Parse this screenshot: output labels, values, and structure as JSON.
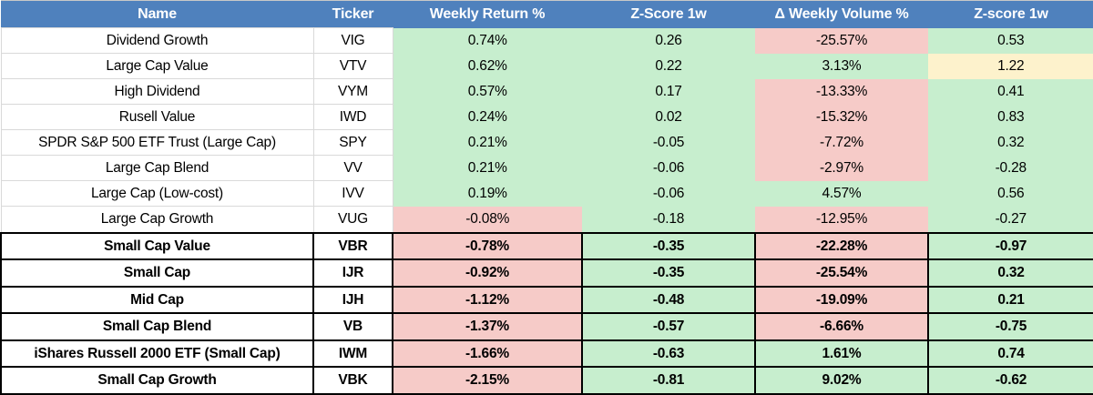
{
  "colors": {
    "header_bg": "#4F81BD",
    "header_text": "#FFFFFF",
    "green": "#C7EECE",
    "red": "#F6CBC8",
    "yellow": "#FDF2CC",
    "white": "#FFFFFF",
    "grid_light": "#D9D9D9",
    "grid_heavy": "#000000"
  },
  "table": {
    "columns": [
      {
        "label": "Name"
      },
      {
        "label": "Ticker"
      },
      {
        "label": "Weekly Return %"
      },
      {
        "label": "Z-Score 1w"
      },
      {
        "label": "Δ Weekly Volume %"
      },
      {
        "label": "Z-score 1w"
      }
    ],
    "rows": [
      {
        "name": "Dividend Growth",
        "ticker": "VIG",
        "bold": false,
        "cells": [
          {
            "value": "0.74%",
            "bg": "green"
          },
          {
            "value": "0.26",
            "bg": "green"
          },
          {
            "value": "-25.57%",
            "bg": "red"
          },
          {
            "value": "0.53",
            "bg": "green"
          }
        ]
      },
      {
        "name": "Large Cap Value",
        "ticker": "VTV",
        "bold": false,
        "cells": [
          {
            "value": "0.62%",
            "bg": "green"
          },
          {
            "value": "0.22",
            "bg": "green"
          },
          {
            "value": "3.13%",
            "bg": "green"
          },
          {
            "value": "1.22",
            "bg": "yellow"
          }
        ]
      },
      {
        "name": "High Dividend",
        "ticker": "VYM",
        "bold": false,
        "cells": [
          {
            "value": "0.57%",
            "bg": "green"
          },
          {
            "value": "0.17",
            "bg": "green"
          },
          {
            "value": "-13.33%",
            "bg": "red"
          },
          {
            "value": "0.41",
            "bg": "green"
          }
        ]
      },
      {
        "name": "Rusell Value",
        "ticker": "IWD",
        "bold": false,
        "cells": [
          {
            "value": "0.24%",
            "bg": "green"
          },
          {
            "value": "0.02",
            "bg": "green"
          },
          {
            "value": "-15.32%",
            "bg": "red"
          },
          {
            "value": "0.83",
            "bg": "green"
          }
        ]
      },
      {
        "name": "SPDR S&P 500 ETF Trust (Large Cap)",
        "ticker": "SPY",
        "bold": false,
        "cells": [
          {
            "value": "0.21%",
            "bg": "green"
          },
          {
            "value": "-0.05",
            "bg": "green"
          },
          {
            "value": "-7.72%",
            "bg": "red"
          },
          {
            "value": "0.32",
            "bg": "green"
          }
        ]
      },
      {
        "name": "Large Cap Blend",
        "ticker": "VV",
        "bold": false,
        "cells": [
          {
            "value": "0.21%",
            "bg": "green"
          },
          {
            "value": "-0.06",
            "bg": "green"
          },
          {
            "value": "-2.97%",
            "bg": "red"
          },
          {
            "value": "-0.28",
            "bg": "green"
          }
        ]
      },
      {
        "name": "Large Cap (Low-cost)",
        "ticker": "IVV",
        "bold": false,
        "cells": [
          {
            "value": "0.19%",
            "bg": "green"
          },
          {
            "value": "-0.06",
            "bg": "green"
          },
          {
            "value": "4.57%",
            "bg": "green"
          },
          {
            "value": "0.56",
            "bg": "green"
          }
        ]
      },
      {
        "name": "Large Cap Growth",
        "ticker": "VUG",
        "bold": false,
        "cells": [
          {
            "value": "-0.08%",
            "bg": "red"
          },
          {
            "value": "-0.18",
            "bg": "green"
          },
          {
            "value": "-12.95%",
            "bg": "red"
          },
          {
            "value": "-0.27",
            "bg": "green"
          }
        ]
      },
      {
        "name": "Small Cap Value",
        "ticker": "VBR",
        "bold": true,
        "cells": [
          {
            "value": "-0.78%",
            "bg": "red"
          },
          {
            "value": "-0.35",
            "bg": "green"
          },
          {
            "value": "-22.28%",
            "bg": "red"
          },
          {
            "value": "-0.97",
            "bg": "green"
          }
        ]
      },
      {
        "name": "Small Cap",
        "ticker": "IJR",
        "bold": true,
        "cells": [
          {
            "value": "-0.92%",
            "bg": "red"
          },
          {
            "value": "-0.35",
            "bg": "green"
          },
          {
            "value": "-25.54%",
            "bg": "red"
          },
          {
            "value": "0.32",
            "bg": "green"
          }
        ]
      },
      {
        "name": "Mid Cap",
        "ticker": "IJH",
        "bold": true,
        "cells": [
          {
            "value": "-1.12%",
            "bg": "red"
          },
          {
            "value": "-0.48",
            "bg": "green"
          },
          {
            "value": "-19.09%",
            "bg": "red"
          },
          {
            "value": "0.21",
            "bg": "green"
          }
        ]
      },
      {
        "name": "Small Cap Blend",
        "ticker": "VB",
        "bold": true,
        "cells": [
          {
            "value": "-1.37%",
            "bg": "red"
          },
          {
            "value": "-0.57",
            "bg": "green"
          },
          {
            "value": "-6.66%",
            "bg": "red"
          },
          {
            "value": "-0.75",
            "bg": "green"
          }
        ]
      },
      {
        "name": "iShares Russell 2000 ETF (Small Cap)",
        "ticker": "IWM",
        "bold": true,
        "cells": [
          {
            "value": "-1.66%",
            "bg": "red"
          },
          {
            "value": "-0.63",
            "bg": "green"
          },
          {
            "value": "1.61%",
            "bg": "green"
          },
          {
            "value": "0.74",
            "bg": "green"
          }
        ]
      },
      {
        "name": "Small Cap Growth",
        "ticker": "VBK",
        "bold": true,
        "cells": [
          {
            "value": "-2.15%",
            "bg": "red"
          },
          {
            "value": "-0.81",
            "bg": "green"
          },
          {
            "value": "9.02%",
            "bg": "green"
          },
          {
            "value": "-0.62",
            "bg": "green"
          }
        ]
      }
    ]
  }
}
